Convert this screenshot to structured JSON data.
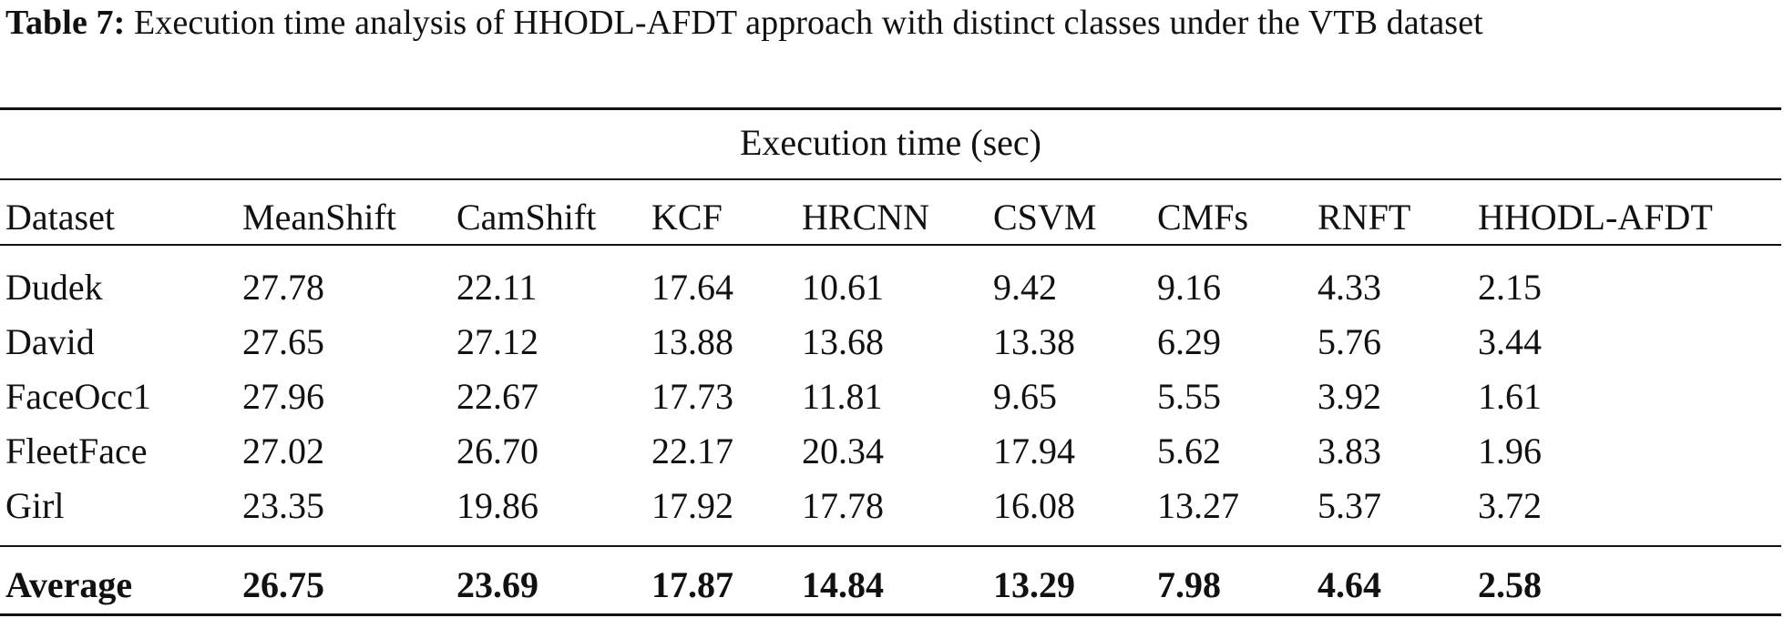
{
  "caption": {
    "label": "Table 7:",
    "text": "Execution time analysis of HHODL-AFDT approach with distinct classes under the VTB dataset"
  },
  "table": {
    "group_header": "Execution time (sec)",
    "columns": [
      "Dataset",
      "MeanShift",
      "CamShift",
      "KCF",
      "HRCNN",
      "CSVM",
      "CMFs",
      "RNFT",
      "HHODL-AFDT"
    ],
    "rows": [
      [
        "Dudek",
        "27.78",
        "22.11",
        "17.64",
        "10.61",
        "9.42",
        "9.16",
        "4.33",
        "2.15"
      ],
      [
        "David",
        "27.65",
        "27.12",
        "13.88",
        "13.68",
        "13.38",
        "6.29",
        "5.76",
        "3.44"
      ],
      [
        "FaceOcc1",
        "27.96",
        "22.67",
        "17.73",
        "11.81",
        "9.65",
        "5.55",
        "3.92",
        "1.61"
      ],
      [
        "FleetFace",
        "27.02",
        "26.70",
        "22.17",
        "20.34",
        "17.94",
        "5.62",
        "3.83",
        "1.96"
      ],
      [
        "Girl",
        "23.35",
        "19.86",
        "17.92",
        "17.78",
        "16.08",
        "13.27",
        "5.37",
        "3.72"
      ]
    ],
    "average": [
      "Average",
      "26.75",
      "23.69",
      "17.87",
      "14.84",
      "13.29",
      "7.98",
      "4.64",
      "2.58"
    ]
  }
}
